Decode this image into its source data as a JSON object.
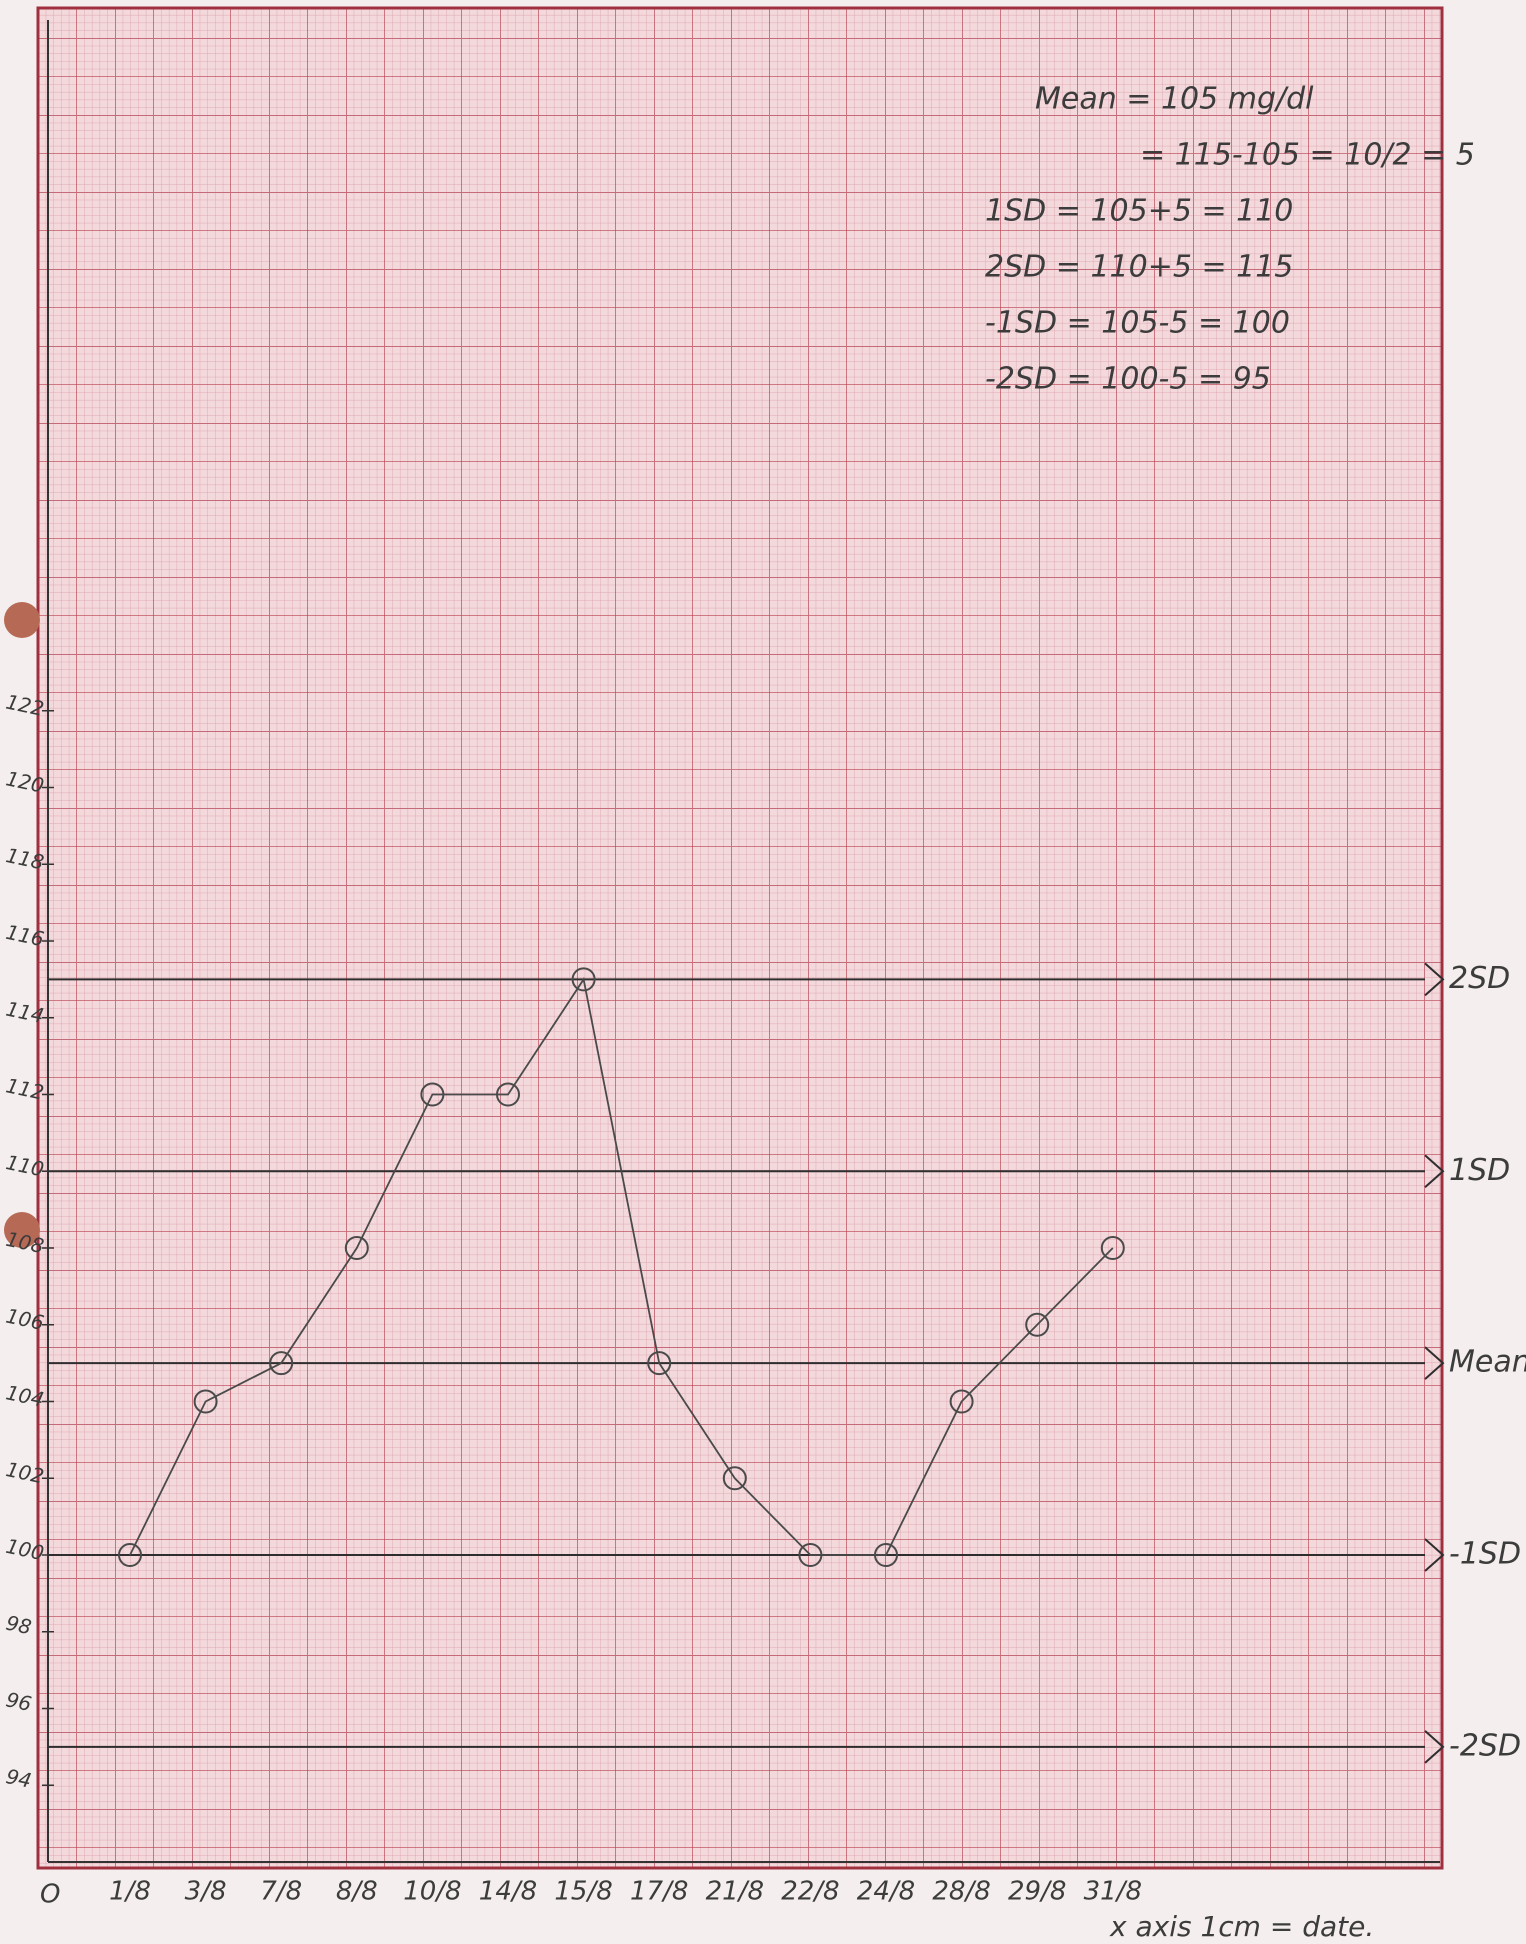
{
  "chart_data": {
    "type": "line",
    "categories": [
      "1/8",
      "3/8",
      "7/8",
      "8/8",
      "10/8",
      "14/8",
      "15/8",
      "17/8",
      "21/8",
      "22/8",
      "24/8",
      "28/8",
      "29/8",
      "31/8"
    ],
    "values": [
      100,
      104,
      105,
      108,
      112,
      112,
      115,
      105,
      102,
      100,
      100,
      104,
      106,
      108
    ],
    "color": "#4a4a4a",
    "ylim": [
      92,
      140
    ],
    "yticks": [
      94,
      96,
      98,
      100,
      102,
      104,
      106,
      108,
      110,
      112,
      114,
      116,
      118,
      120,
      122
    ],
    "reference_lines": [
      {
        "value": 115,
        "label": "2SD"
      },
      {
        "value": 110,
        "label": "1SD"
      },
      {
        "value": 105,
        "label": "Mean"
      },
      {
        "value": 100,
        "label": "-1SD"
      },
      {
        "value": 95,
        "label": "-2SD"
      }
    ],
    "annotations": [
      "Mean = 105 mg/dl",
      "= 115-105 = 10/2 = 5",
      "1SD = 105+5 = 110",
      "2SD = 110+5 = 115",
      "-1SD = 105-5 = 100",
      "-2SD = 100-5 = 95"
    ],
    "x_label": "x axis 1cm = date.",
    "origin_label": "O"
  }
}
